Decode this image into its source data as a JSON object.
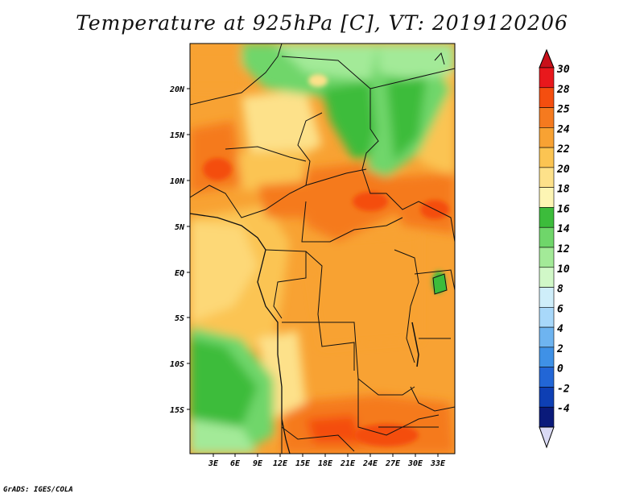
{
  "title": "Temperature at 925hPa [C], VT: 2019120206",
  "credit": "GrADS: IGES/COLA",
  "lat_labels": [
    "20N",
    "15N",
    "10N",
    "5N",
    "EQ",
    "5S",
    "10S",
    "15S"
  ],
  "lon_labels": [
    "3E",
    "6E",
    "9E",
    "12E",
    "15E",
    "18E",
    "21E",
    "24E",
    "27E",
    "30E",
    "33E"
  ],
  "colorbar": {
    "labels": [
      "30",
      "28",
      "25",
      "24",
      "22",
      "20",
      "18",
      "16",
      "14",
      "12",
      "10",
      "8",
      "6",
      "4",
      "2",
      "0",
      "-2",
      "-4"
    ],
    "colors": [
      "#e8181c",
      "#f44e0f",
      "#f57a1f",
      "#f8a233",
      "#fbc452",
      "#fde18a",
      "#fdf5b4",
      "#3cbc3b",
      "#6fd66a",
      "#a3ea98",
      "#d1f8c8",
      "#cfeefa",
      "#a8d8fa",
      "#6eb4f0",
      "#3f91e6",
      "#2266d6",
      "#0e3fb4",
      "#0a1a7a"
    ],
    "top_arrow_color": "#c8101a",
    "bottom_arrow_color": "#dadaf4"
  }
}
